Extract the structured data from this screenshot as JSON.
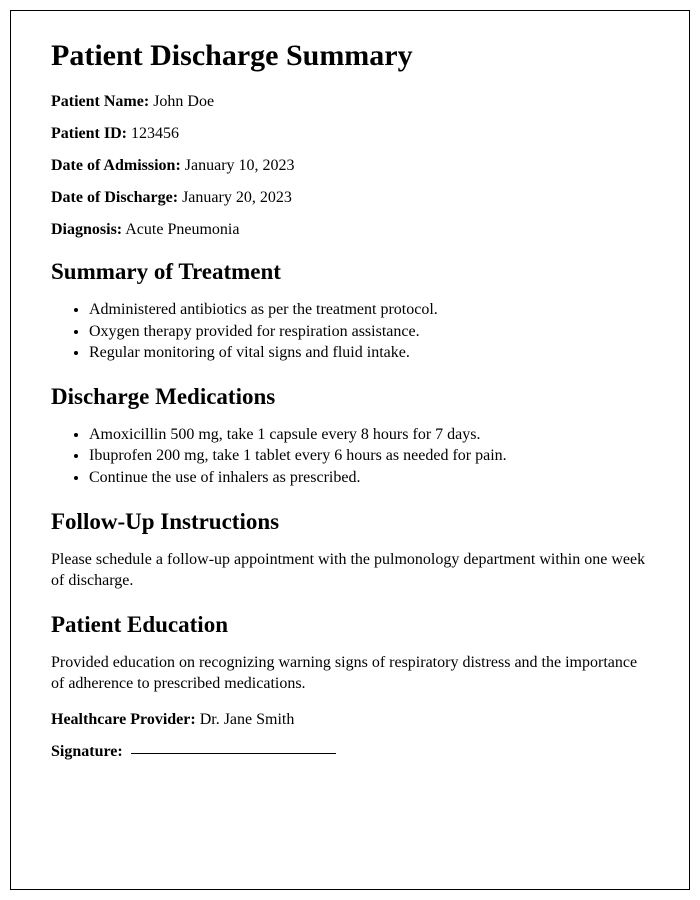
{
  "title": "Patient Discharge Summary",
  "fields": {
    "patientName": {
      "label": "Patient Name:",
      "value": "John Doe"
    },
    "patientId": {
      "label": "Patient ID:",
      "value": "123456"
    },
    "dateAdmission": {
      "label": "Date of Admission:",
      "value": "January 10, 2023"
    },
    "dateDischarge": {
      "label": "Date of Discharge:",
      "value": "January 20, 2023"
    },
    "diagnosis": {
      "label": "Diagnosis:",
      "value": "Acute Pneumonia"
    }
  },
  "sections": {
    "treatment": {
      "heading": "Summary of Treatment",
      "items": [
        "Administered antibiotics as per the treatment protocol.",
        "Oxygen therapy provided for respiration assistance.",
        "Regular monitoring of vital signs and fluid intake."
      ]
    },
    "medications": {
      "heading": "Discharge Medications",
      "items": [
        "Amoxicillin 500 mg, take 1 capsule every 8 hours for 7 days.",
        "Ibuprofen 200 mg, take 1 tablet every 6 hours as needed for pain.",
        "Continue the use of inhalers as prescribed."
      ]
    },
    "followup": {
      "heading": "Follow-Up Instructions",
      "text": "Please schedule a follow-up appointment with the pulmonology department within one week of discharge."
    },
    "education": {
      "heading": "Patient Education",
      "text": "Provided education on recognizing warning signs of respiratory distress and the importance of adherence to prescribed medications."
    }
  },
  "provider": {
    "label": "Healthcare Provider:",
    "value": "Dr. Jane Smith"
  },
  "signature": {
    "label": "Signature:"
  },
  "styling": {
    "page_border_color": "#000000",
    "background_color": "#ffffff",
    "text_color": "#000000",
    "font_family": "Times New Roman",
    "h1_fontsize": 30,
    "h2_fontsize": 23,
    "body_fontsize": 16,
    "signature_line_width": 205
  }
}
